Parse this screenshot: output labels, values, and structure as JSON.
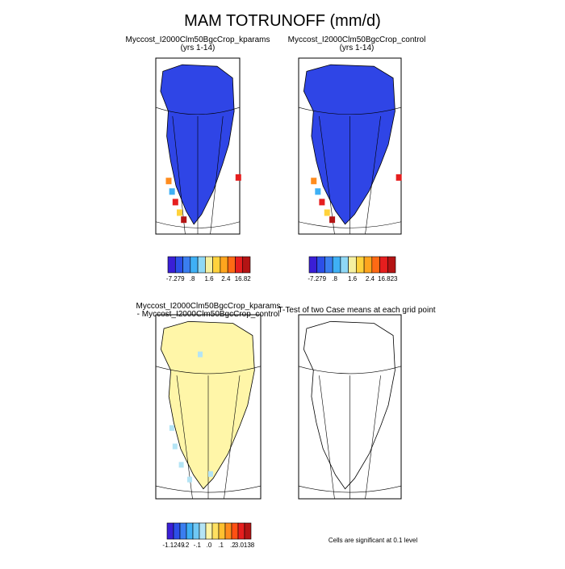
{
  "title": "MAM TOTRUNOFF (mm/d)",
  "panels": [
    {
      "title": "Myccost_I2000Clm50BgcCrop_kparams",
      "subtitle": "(yrs 1-14)",
      "colorbar": {
        "labels": [
          "-7.279",
          ".8",
          "1.6",
          "2.4",
          "16.82"
        ],
        "colors": [
          "#3a1fd6",
          "#2c4fe8",
          "#3a7ef0",
          "#3fb0f5",
          "#8fd8f5",
          "#f5f0a0",
          "#ffd23c",
          "#ffa51e",
          "#ff6a14",
          "#e61e1e",
          "#b41414"
        ]
      }
    },
    {
      "title": "Myccost_I2000Clm50BgcCrop_control",
      "subtitle": "(yrs 1-14)",
      "colorbar": {
        "labels": [
          "-7.279",
          ".8",
          "1.6",
          "2.4",
          "16.823"
        ],
        "colors": [
          "#3a1fd6",
          "#2c4fe8",
          "#3a7ef0",
          "#3fb0f5",
          "#8fd8f5",
          "#f5f0a0",
          "#ffd23c",
          "#ffa51e",
          "#ff6a14",
          "#e61e1e",
          "#b41414"
        ]
      }
    },
    {
      "title": "Myccost_I2000Clm50BgcCrop_kparams",
      "subtitle": "- Myccost_I2000Clm50BgcCrop_control",
      "colorbar": {
        "labels": [
          "-1.1249",
          "-.2",
          "-.1",
          ".0",
          ".1",
          ".2",
          "3.0138"
        ],
        "colors": [
          "#3a1fd6",
          "#2c4fe8",
          "#3a7ef0",
          "#3fb0f5",
          "#6fc8f5",
          "#b4e4f5",
          "#fff5a5",
          "#ffe060",
          "#ffc030",
          "#ff8c1e",
          "#ff5014",
          "#e61e1e",
          "#b41414"
        ]
      }
    },
    {
      "title": "T-Test of two Case means at each grid point",
      "note": "Cells are significant at 0.1 level"
    }
  ]
}
